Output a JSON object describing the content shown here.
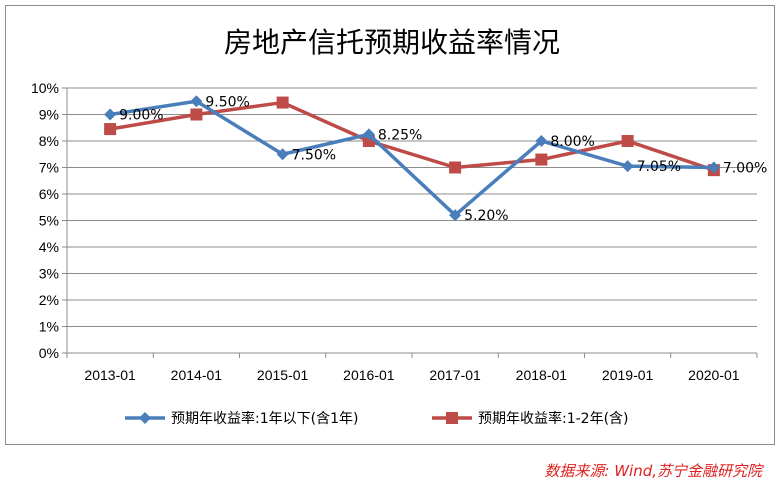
{
  "chart_data": {
    "type": "line",
    "title": "房地产信托预期收益率情况",
    "categories": [
      "2013-01",
      "2014-01",
      "2015-01",
      "2016-01",
      "2017-01",
      "2018-01",
      "2019-01",
      "2020-01"
    ],
    "ylim": [
      0,
      10
    ],
    "y_ticks": [
      "0%",
      "1%",
      "2%",
      "3%",
      "4%",
      "5%",
      "6%",
      "7%",
      "8%",
      "9%",
      "10%"
    ],
    "grid": true,
    "legend_position": "bottom",
    "series": [
      {
        "name": "预期年收益率:1年以下(含1年)",
        "color": "#4a7ebb",
        "marker": "diamond",
        "values": [
          9.0,
          9.5,
          7.5,
          8.25,
          5.2,
          8.0,
          7.05,
          7.0
        ],
        "labels": [
          "9.00%",
          "9.50%",
          "7.50%",
          "8.25%",
          "5.20%",
          "8.00%",
          "7.05%",
          "7.00%"
        ]
      },
      {
        "name": "预期年收益率:1-2年(含)",
        "color": "#be4b48",
        "marker": "square",
        "values": [
          8.45,
          9.0,
          9.45,
          8.0,
          7.0,
          7.3,
          8.0,
          6.9
        ]
      }
    ]
  },
  "source_note": "数据来源: Wind,苏宁金融研究院"
}
